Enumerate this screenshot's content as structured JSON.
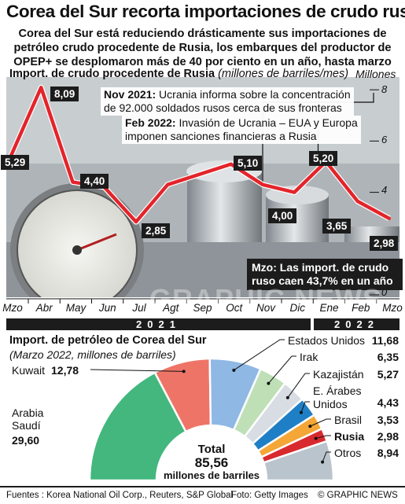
{
  "header": {
    "title": "Corea del Sur recorta importaciones de crudo ruso",
    "subtitle_lines": [
      "Corea del Sur está reduciendo drásticamente sus importaciones de",
      "petróleo crudo procedente de Rusia, los embarques del productor de",
      "OPEP+ se desplomaron más de 40 por ciento en un año, hasta marzo"
    ]
  },
  "chart_data": [
    {
      "type": "line",
      "title": "Import. de crudo procedente de Rusia",
      "subtitle": "(millones de barriles/mes)",
      "ylabel": "Millones",
      "x": [
        "Mzo",
        "Abr",
        "May",
        "Jun",
        "Jul",
        "Agt",
        "Sep",
        "Oct",
        "Nov",
        "Dic",
        "Ene",
        "Feb",
        "Mzo"
      ],
      "years": [
        "2021",
        "2022"
      ],
      "values": [
        5.29,
        8.09,
        4.4,
        4.2,
        2.85,
        4.3,
        4.7,
        5.1,
        4.3,
        4.0,
        5.2,
        3.65,
        2.98
      ],
      "labeled_values": [
        "5,29",
        "8,09",
        "4,40",
        "2,85",
        "5,10",
        "4,00",
        "5,20",
        "3,65",
        "2,98"
      ],
      "yticks": [
        "8",
        "6",
        "4",
        "0"
      ],
      "ylim": [
        0,
        8.6
      ],
      "grid": false,
      "line_color": "#e3242b",
      "annotations": {
        "nov": {
          "head": "Nov 2021:",
          "lines": [
            "Ucrania informa sobre la concentración",
            "de 92.000 soldados rusos cerca de sus fronteras"
          ]
        },
        "feb": {
          "head": "Feb 2022:",
          "lines": [
            "Invasión de Ucrania – EUA y Europa",
            "imponen sanciones financieras a Rusia"
          ]
        },
        "mzo": "Mzo: Las import. de crudo ruso caen 43,7% en un año"
      }
    },
    {
      "type": "pie",
      "title": "Import. de petróleo de Corea del Sur",
      "subtitle": "(Marzo 2022, millones de barriles)",
      "slices": [
        {
          "name": "Arabia Saudí",
          "value": 29.6,
          "label": "29,60",
          "color": "#43b77d"
        },
        {
          "name": "Kuwait",
          "value": 12.78,
          "label": "12,78",
          "color": "#ef7468"
        },
        {
          "name": "Estados Unidos",
          "value": 11.68,
          "label": "11,68",
          "color": "#8fb8e4"
        },
        {
          "name": "Irak",
          "value": 6.35,
          "label": "6,35",
          "color": "#bfe0b7"
        },
        {
          "name": "Kazajistán",
          "value": 5.27,
          "label": "5,27",
          "color": "#d7dde2"
        },
        {
          "name": "E. Árabes Unidos",
          "value": 4.43,
          "label": "4,43",
          "color": "#1e7fc6"
        },
        {
          "name": "Brasil",
          "value": 3.53,
          "label": "3,53",
          "color": "#f4a637"
        },
        {
          "name": "Rusia",
          "value": 2.98,
          "label": "2,98",
          "color": "#d82a2e"
        },
        {
          "name": "Otros",
          "value": 8.94,
          "label": "8,94",
          "color": "#b9c4cc"
        }
      ],
      "total_label": "Total",
      "total_value": "85,56",
      "total_unit": "millones de barriles"
    }
  ],
  "watermark": "GRAPHIC NEWS",
  "footer": {
    "sources": "Fuentes : Korea National Oil Corp., Reuters, S&P Global",
    "photo": "Foto: Getty Images",
    "credit": "© GRAPHIC NEWS"
  }
}
